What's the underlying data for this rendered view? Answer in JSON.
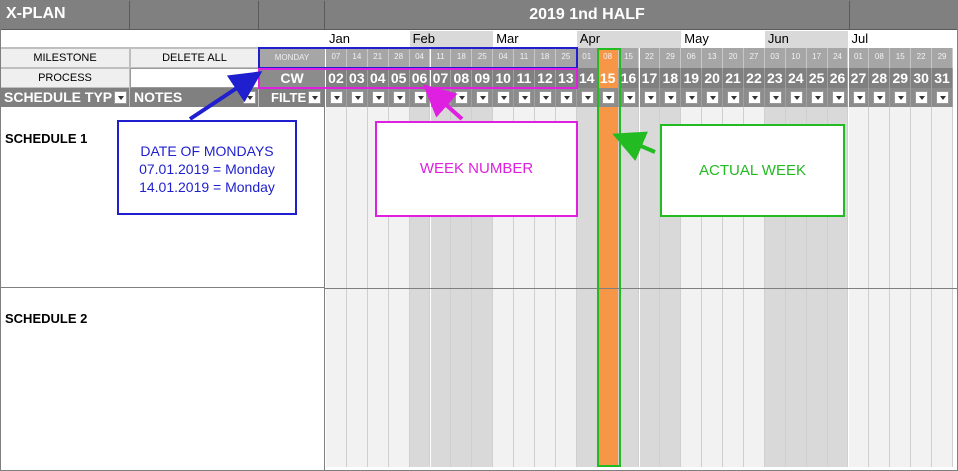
{
  "app": {
    "title": "X-PLAN",
    "period_title": "2019 1nd HALF"
  },
  "left": {
    "milestone_label": "MILESTONE",
    "delete_all_label": "DELETE ALL",
    "process_label": "PROCESS",
    "monday_label": "MONDAY",
    "cw_label": "CW",
    "schedule_type_header": "SCHEDULE TYP",
    "notes_header": "NOTES",
    "filter_header": "FILTE",
    "schedules": [
      "SCHEDULE 1",
      "SCHEDULE 2"
    ]
  },
  "months": [
    {
      "label": "Jan",
      "start": 0
    },
    {
      "label": "Feb",
      "start": 4
    },
    {
      "label": "Mar",
      "start": 8
    },
    {
      "label": "Apr",
      "start": 12
    },
    {
      "label": "May",
      "start": 17
    },
    {
      "label": "Jun",
      "start": 21
    },
    {
      "label": "Jul",
      "start": 25
    }
  ],
  "weeks": [
    {
      "date": "07",
      "cw": "02"
    },
    {
      "date": "14",
      "cw": "03"
    },
    {
      "date": "21",
      "cw": "04"
    },
    {
      "date": "28",
      "cw": "05"
    },
    {
      "date": "04",
      "cw": "06"
    },
    {
      "date": "11",
      "cw": "07"
    },
    {
      "date": "18",
      "cw": "08"
    },
    {
      "date": "25",
      "cw": "09"
    },
    {
      "date": "04",
      "cw": "10"
    },
    {
      "date": "11",
      "cw": "11"
    },
    {
      "date": "18",
      "cw": "12"
    },
    {
      "date": "25",
      "cw": "13"
    },
    {
      "date": "01",
      "cw": "14"
    },
    {
      "date": "08",
      "cw": "15"
    },
    {
      "date": "15",
      "cw": "16"
    },
    {
      "date": "22",
      "cw": "17"
    },
    {
      "date": "29",
      "cw": "18"
    },
    {
      "date": "06",
      "cw": "19"
    },
    {
      "date": "13",
      "cw": "20"
    },
    {
      "date": "20",
      "cw": "21"
    },
    {
      "date": "27",
      "cw": "22"
    },
    {
      "date": "03",
      "cw": "23"
    },
    {
      "date": "10",
      "cw": "24"
    },
    {
      "date": "17",
      "cw": "25"
    },
    {
      "date": "24",
      "cw": "26"
    },
    {
      "date": "01",
      "cw": "27"
    },
    {
      "date": "08",
      "cw": "28"
    },
    {
      "date": "15",
      "cw": "29"
    },
    {
      "date": "22",
      "cw": "30"
    },
    {
      "date": "29",
      "cw": "31"
    }
  ],
  "actual_week_index": 13,
  "callouts": {
    "mondays": {
      "line1": "DATE OF MONDAYS",
      "line2": "07.01.2019 = Monday",
      "line3": "14.01.2019 = Monday"
    },
    "week_number": "WEEK NUMBER",
    "actual_week": "ACTUAL WEEK"
  },
  "colors": {
    "header_gray": "#808080",
    "accent_orange": "#f79646",
    "callout_blue": "#1f1fcf",
    "callout_magenta": "#e020e0",
    "callout_green": "#22bb22",
    "shade_gray": "#d9d9d9",
    "light_gray": "#f2f2f2"
  }
}
